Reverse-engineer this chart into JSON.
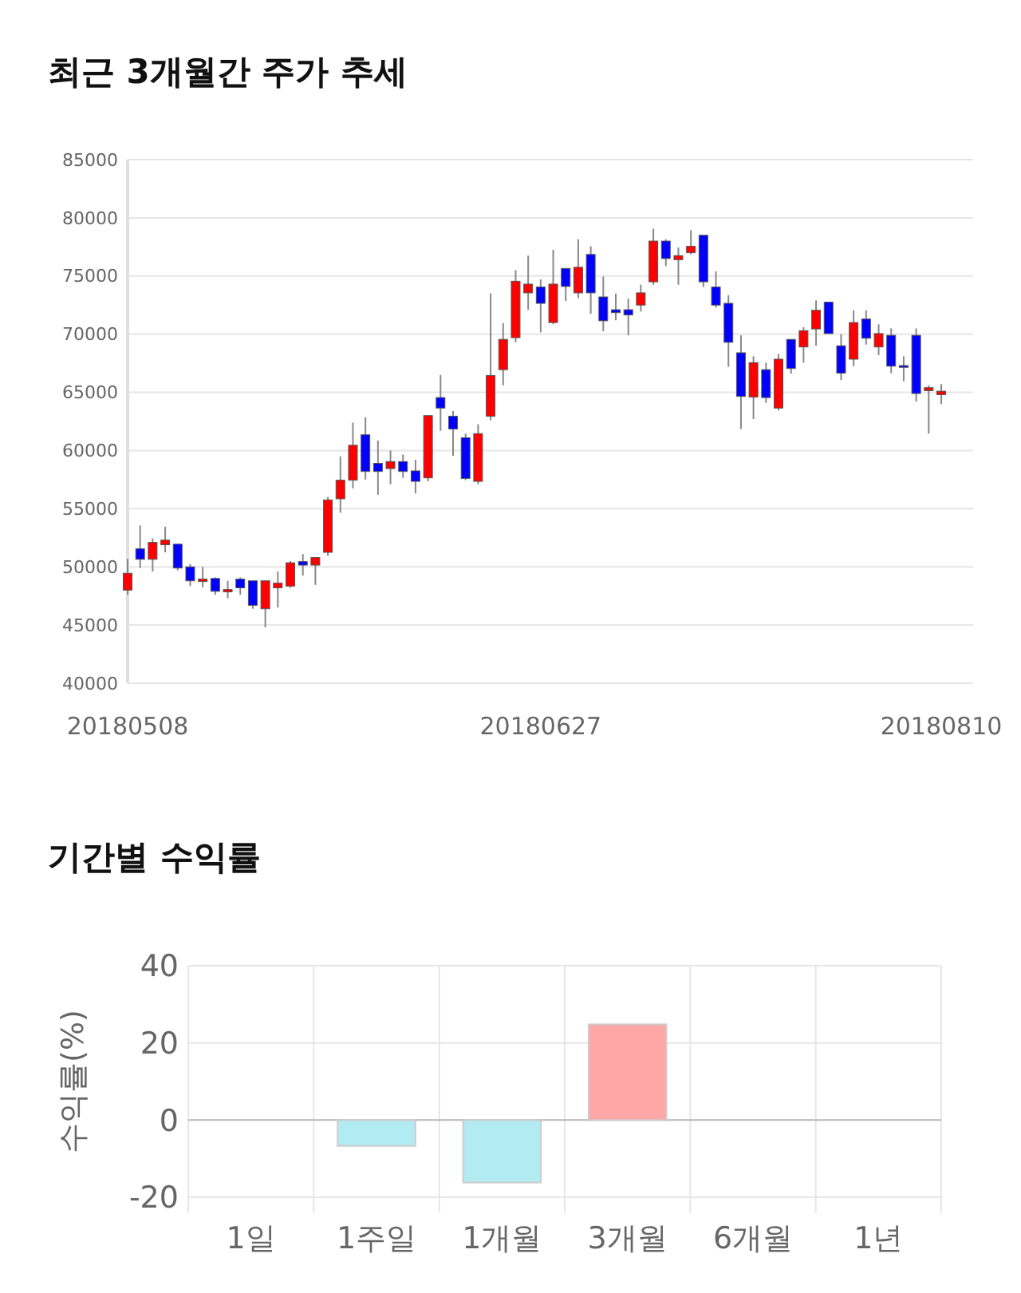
{
  "chart_data": [
    {
      "type": "candlestick",
      "title": "최근 3개월간 주가 추세",
      "categories": [
        "20180508",
        null,
        null,
        null,
        null,
        null,
        null,
        null,
        null,
        null,
        null,
        null,
        null,
        null,
        null,
        null,
        null,
        null,
        null,
        null,
        null,
        null,
        null,
        null,
        null,
        null,
        null,
        null,
        null,
        null,
        null,
        null,
        null,
        "20180627",
        null,
        null,
        null,
        null,
        null,
        null,
        null,
        null,
        null,
        null,
        null,
        null,
        null,
        null,
        null,
        null,
        null,
        null,
        null,
        null,
        null,
        null,
        null,
        null,
        null,
        null,
        null,
        null,
        null,
        null,
        null,
        "20180810"
      ],
      "ohlc": [
        [
          48000,
          50700,
          47600,
          49450
        ],
        [
          51550,
          53550,
          49900,
          50650
        ],
        [
          50650,
          52450,
          49600,
          52100
        ],
        [
          51900,
          53450,
          51250,
          52300
        ],
        [
          51950,
          52000,
          49700,
          49900
        ],
        [
          50000,
          50250,
          48350,
          48800
        ],
        [
          48750,
          50000,
          48250,
          48950
        ],
        [
          49000,
          49100,
          47600,
          47900
        ],
        [
          47850,
          48800,
          47300,
          48050
        ],
        [
          48950,
          49100,
          47600,
          48200
        ],
        [
          48800,
          48800,
          46400,
          46700
        ],
        [
          46400,
          48850,
          44800,
          48800
        ],
        [
          48200,
          49600,
          46500,
          48600
        ],
        [
          48350,
          50500,
          48200,
          50350
        ],
        [
          50450,
          51100,
          49250,
          50150
        ],
        [
          50150,
          50800,
          48450,
          50800
        ],
        [
          51250,
          56000,
          50950,
          55750
        ],
        [
          55850,
          59500,
          54650,
          57450
        ],
        [
          57450,
          62400,
          56750,
          60450
        ],
        [
          61350,
          62850,
          57500,
          58200
        ],
        [
          58900,
          60850,
          56200,
          58200
        ],
        [
          58450,
          60000,
          57100,
          59050
        ],
        [
          59050,
          59650,
          57650,
          58200
        ],
        [
          58250,
          59200,
          56300,
          57350
        ],
        [
          57650,
          63000,
          57350,
          63000
        ],
        [
          64550,
          66500,
          61700,
          63650
        ],
        [
          62950,
          63400,
          59550,
          61850
        ],
        [
          61100,
          61450,
          57450,
          57600
        ],
        [
          57350,
          62250,
          57100,
          61450
        ],
        [
          62950,
          73500,
          62600,
          66450
        ],
        [
          66950,
          70950,
          65600,
          69550
        ],
        [
          69700,
          75500,
          69300,
          74550
        ],
        [
          73550,
          76750,
          72100,
          74300
        ],
        [
          74050,
          74700,
          70150,
          72650
        ],
        [
          71000,
          77250,
          70850,
          74300
        ],
        [
          75650,
          75650,
          72850,
          74100
        ],
        [
          73550,
          78150,
          73100,
          75750
        ],
        [
          76850,
          77550,
          71750,
          73550
        ],
        [
          73200,
          74950,
          70250,
          71150
        ],
        [
          72100,
          73500,
          71200,
          71850
        ],
        [
          72100,
          73050,
          69900,
          71650
        ],
        [
          72500,
          74250,
          71950,
          73550
        ],
        [
          74500,
          79050,
          74250,
          78000
        ],
        [
          78000,
          78150,
          75850,
          76500
        ],
        [
          76400,
          77450,
          74250,
          76750
        ],
        [
          77000,
          78950,
          76850,
          77550
        ],
        [
          78500,
          78500,
          74050,
          74500
        ],
        [
          74050,
          75400,
          72300,
          72500
        ],
        [
          72650,
          73350,
          67200,
          69300
        ],
        [
          68400,
          69900,
          61850,
          64650
        ],
        [
          64600,
          68100,
          62700,
          67550
        ],
        [
          66950,
          67550,
          64100,
          64550
        ],
        [
          63650,
          68300,
          63450,
          67850
        ],
        [
          69550,
          69550,
          66600,
          67050
        ],
        [
          68900,
          70600,
          67550,
          70300
        ],
        [
          70450,
          72900,
          69000,
          72050
        ],
        [
          72750,
          72750,
          70050,
          70050
        ],
        [
          69000,
          70000,
          66050,
          66650
        ],
        [
          67850,
          72050,
          67250,
          71000
        ],
        [
          71300,
          72050,
          69100,
          69650
        ],
        [
          68900,
          70850,
          68200,
          70050
        ],
        [
          69900,
          70500,
          66650,
          67250
        ],
        [
          67300,
          68100,
          65950,
          67150
        ],
        [
          69900,
          70500,
          64200,
          64900
        ],
        [
          65150,
          65600,
          61450,
          65400
        ],
        [
          64800,
          65700,
          64000,
          65100
        ]
      ],
      "colors": [
        "#ff0000",
        "#0000ff",
        "#ff0000",
        "#ff0000",
        "#0000ff",
        "#0000ff",
        "#ff0000",
        "#0000ff",
        "#ff0000",
        "#0000ff",
        "#0000ff",
        "#ff0000",
        "#ff0000",
        "#ff0000",
        "#0000ff",
        "#ff0000",
        "#ff0000",
        "#ff0000",
        "#ff0000",
        "#0000ff",
        "#0000ff",
        "#ff0000",
        "#0000ff",
        "#0000ff",
        "#ff0000",
        "#0000ff",
        "#0000ff",
        "#0000ff",
        "#ff0000",
        "#ff0000",
        "#ff0000",
        "#ff0000",
        "#ff0000",
        "#0000ff",
        "#ff0000",
        "#0000ff",
        "#ff0000",
        "#0000ff",
        "#0000ff",
        "#0000ff",
        "#0000ff",
        "#ff0000",
        "#ff0000",
        "#0000ff",
        "#ff0000",
        "#ff0000",
        "#0000ff",
        "#0000ff",
        "#0000ff",
        "#0000ff",
        "#ff0000",
        "#0000ff",
        "#ff0000",
        "#0000ff",
        "#ff0000",
        "#ff0000",
        "#0000ff",
        "#0000ff",
        "#ff0000",
        "#0000ff",
        "#ff0000",
        "#0000ff",
        "#0000ff",
        "#0000ff",
        "#ff0000",
        "#ff0000"
      ],
      "ylim": [
        40000,
        85000
      ],
      "yticks": [
        40000,
        45000,
        50000,
        55000,
        60000,
        65000,
        70000,
        75000,
        80000,
        85000
      ],
      "grid": "y"
    },
    {
      "type": "bar",
      "title": "기간별 수익률",
      "ylabel": "수익률(%)",
      "categories": [
        "1일",
        "1주일",
        "1개월",
        "3개월",
        "6개월",
        "1년"
      ],
      "values": [
        null,
        -6.7,
        -16.2,
        24.8,
        null,
        null
      ],
      "colors": [
        null,
        "#b2ebf2",
        "#b2ebf2",
        "#ffa6a6",
        null,
        null
      ],
      "ylim": [
        -20,
        40
      ],
      "yticks": [
        -20,
        0,
        20,
        40
      ],
      "grid": true
    }
  ]
}
